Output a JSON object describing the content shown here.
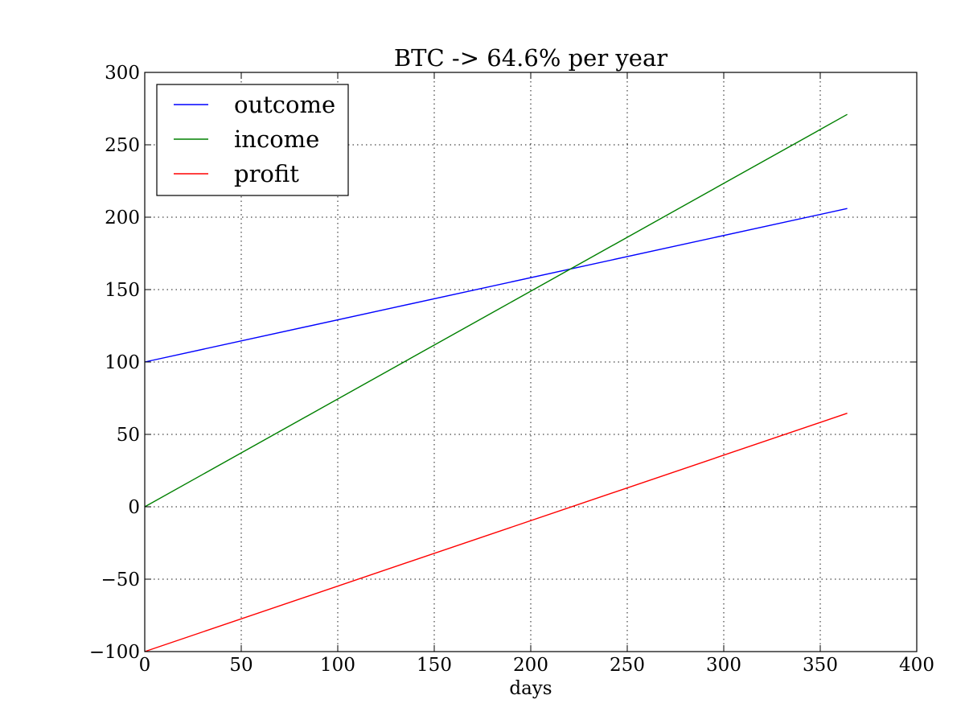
{
  "chart_data": {
    "type": "line",
    "title": "BTC -> 64.6% per year",
    "xlabel": "days",
    "ylabel": "",
    "xlim": [
      0,
      400
    ],
    "ylim": [
      -100,
      300
    ],
    "xticks": [
      0,
      50,
      100,
      150,
      200,
      250,
      300,
      350,
      400
    ],
    "xtick_labels": [
      "0",
      "50",
      "100",
      "150",
      "200",
      "250",
      "300",
      "350",
      "400"
    ],
    "yticks": [
      -100,
      -50,
      0,
      50,
      100,
      150,
      200,
      250,
      300
    ],
    "ytick_labels": [
      "−100",
      "−50",
      "0",
      "50",
      "100",
      "150",
      "200",
      "250",
      "300"
    ],
    "grid": true,
    "legend_position": "top-left",
    "series": [
      {
        "name": "outcome",
        "color": "#0000ff",
        "x": [
          0,
          364
        ],
        "values": [
          100,
          206
        ]
      },
      {
        "name": "income",
        "color": "#008000",
        "x": [
          0,
          364
        ],
        "values": [
          0,
          271
        ]
      },
      {
        "name": "profit",
        "color": "#ff0000",
        "x": [
          0,
          364
        ],
        "values": [
          -100,
          64.6
        ]
      }
    ]
  }
}
